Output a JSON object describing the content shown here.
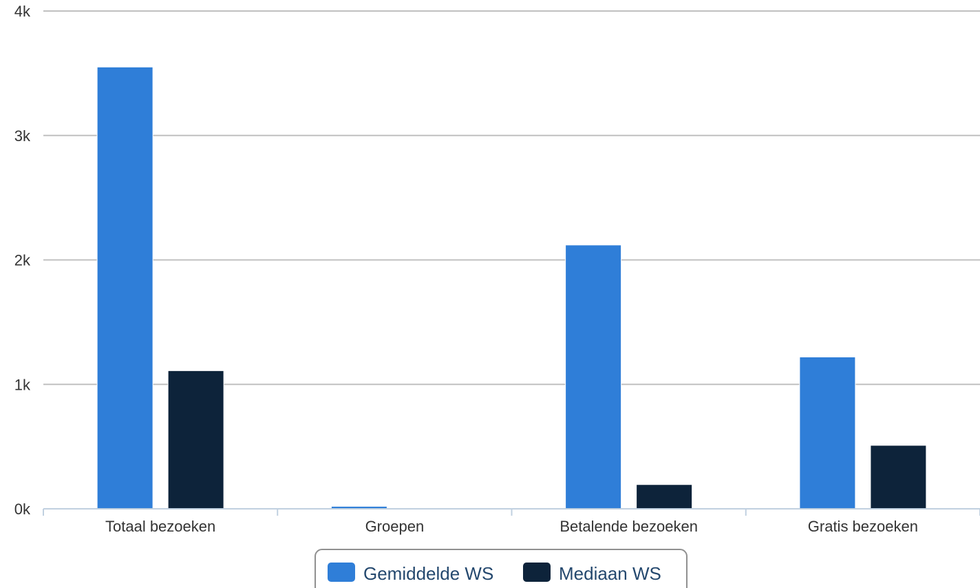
{
  "chart_data": {
    "type": "bar",
    "title": "",
    "xlabel": "",
    "ylabel": "",
    "categories": [
      "Totaal bezoeken",
      "Groepen",
      "Betalende bezoeken",
      "Gratis bezoeken"
    ],
    "series": [
      {
        "name": "Gemiddelde WS",
        "color": "#2f7ed8",
        "values": [
          3550,
          20,
          2120,
          1220
        ]
      },
      {
        "name": "Mediaan WS",
        "color": "#0d233a",
        "values": [
          1110,
          0,
          195,
          510
        ]
      }
    ],
    "ylim": [
      0,
      4000
    ],
    "yticks": [
      0,
      1000,
      2000,
      3000,
      4000
    ],
    "ytick_labels": [
      "0k",
      "1k",
      "2k",
      "3k",
      "4k"
    ],
    "grid": true,
    "legend_position": "bottom-center"
  }
}
